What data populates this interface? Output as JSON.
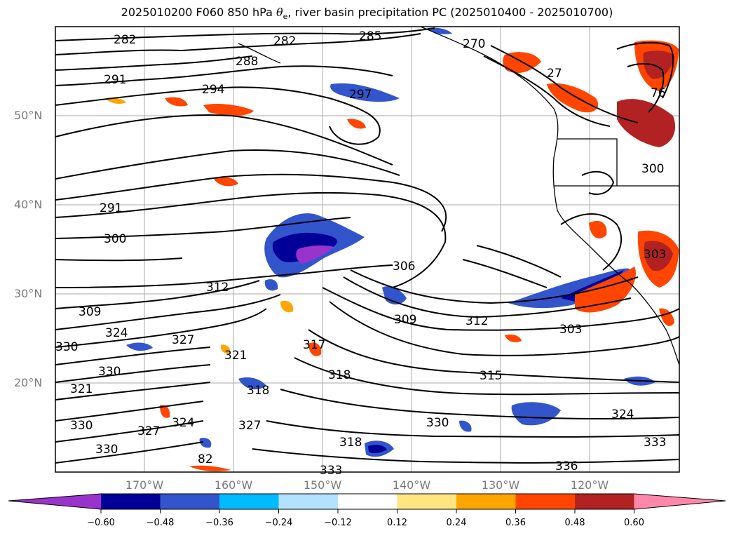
{
  "title": {
    "prefix": "2025010200 F060 850 hPa ",
    "theta": "θ",
    "sub": "e",
    "suffix": ", river basin precipitation PC (2025010400 - 2025010700)"
  },
  "map": {
    "lat_labels": [
      "50°N",
      "40°N",
      "30°N",
      "20°N"
    ],
    "lon_labels": [
      "170°W",
      "160°W",
      "150°W",
      "140°W",
      "130°W",
      "120°W"
    ],
    "contour_labels": [
      "282",
      "282",
      "285",
      "288",
      "291",
      "294",
      "297",
      "270",
      "27",
      "76",
      "300",
      "291",
      "300",
      "312",
      "306",
      "309",
      "312",
      "303",
      "309",
      "324",
      "327",
      "330",
      "321",
      "330",
      "321",
      "330",
      "318",
      "324",
      "327",
      "318",
      "317",
      "318",
      "315",
      "327",
      "330",
      "330",
      "333",
      "336",
      "333",
      "324",
      "303",
      "82"
    ]
  },
  "colorbar": {
    "tick_labels": [
      "−0.60",
      "−0.48",
      "−0.36",
      "−0.24",
      "−0.12",
      "0.12",
      "0.24",
      "0.36",
      "0.48",
      "0.60"
    ],
    "colors": [
      "#9933cc",
      "#000099",
      "#3355cc",
      "#00bbff",
      "#b3e2ff",
      "#ffffff",
      "#ffe680",
      "#ffa500",
      "#ff4500",
      "#b22222",
      "#ff88aa"
    ]
  }
}
